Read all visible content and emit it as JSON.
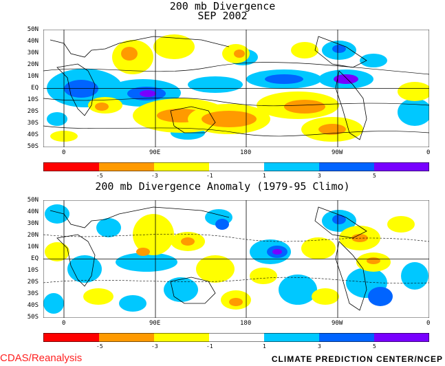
{
  "panel1": {
    "title_line1": "200 mb Divergence",
    "title_line2": "SEP 2002",
    "lat_labels": [
      "50N",
      "40N",
      "30N",
      "20N",
      "10N",
      "EQ",
      "10S",
      "20S",
      "30S",
      "40S",
      "50S"
    ],
    "lon_labels": [
      "0",
      "90E",
      "180",
      "90W",
      "0"
    ]
  },
  "panel2": {
    "title": "200 mb Divergence Anomaly (1979-95 Climo)",
    "lat_labels": [
      "50N",
      "40N",
      "30N",
      "20N",
      "10N",
      "EQ",
      "10S",
      "20S",
      "30S",
      "40S",
      "50S"
    ],
    "lon_labels": [
      "0",
      "90E",
      "180",
      "90W",
      "0"
    ]
  },
  "colorbar": {
    "colors": [
      "#ff0000",
      "#ff3a00",
      "#ff9a00",
      "#ffd200",
      "#ffff00",
      "#ffffff",
      "#00c8ff",
      "#009cff",
      "#0064ff",
      "#7800ff"
    ],
    "labels": [
      "-5",
      "-3",
      "-1",
      "1",
      "3",
      "5"
    ]
  },
  "footer": {
    "left": "CDAS/Reanalysis",
    "right": "CLIMATE PREDICTION CENTER/NCEP"
  },
  "colors": {
    "positive_light": "#00c8ff",
    "positive_mid": "#0064ff",
    "positive_strong": "#7800ff",
    "negative_light": "#ffff00",
    "negative_mid": "#ff9a00",
    "negative_strong": "#ff3a00"
  }
}
